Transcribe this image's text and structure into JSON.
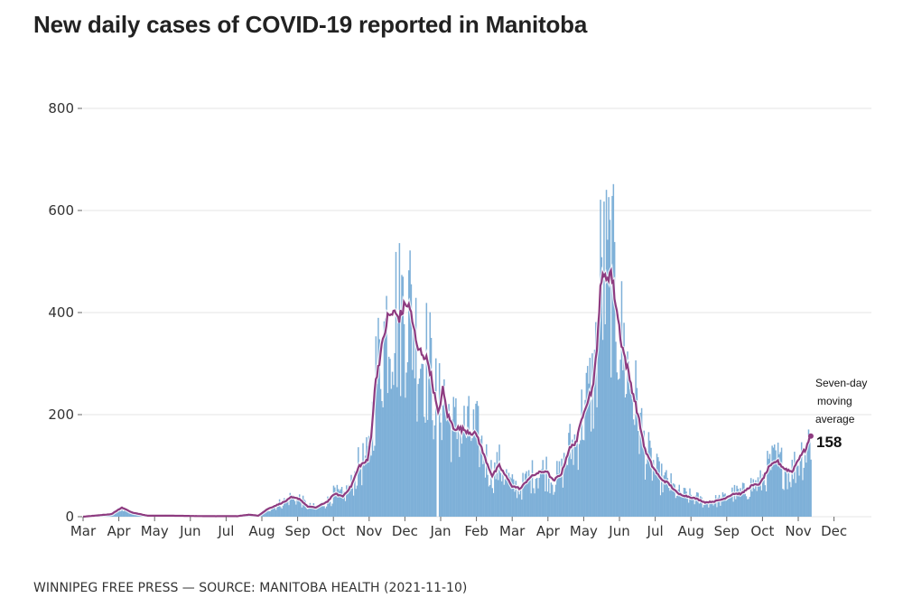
{
  "title": "New daily cases of COVID-19 reported in Manitoba",
  "footer": "WINNIPEG FREE PRESS — SOURCE: MANITOBA HEALTH (2021-11-10)",
  "chart_data": {
    "type": "bar",
    "title": "New daily cases of COVID-19 reported in Manitoba",
    "xlabel": "",
    "ylabel": "",
    "ylim": [
      0,
      800
    ],
    "yticks": [
      "0",
      "200",
      "400",
      "600",
      "800"
    ],
    "ytick_values": [
      0,
      200,
      400,
      600,
      800
    ],
    "xticks": [
      "Mar",
      "Apr",
      "May",
      "Jun",
      "Jul",
      "Aug",
      "Sep",
      "Oct",
      "Nov",
      "Dec",
      "Jan",
      "Feb",
      "Mar",
      "Apr",
      "May",
      "Jun",
      "Jul",
      "Aug",
      "Sep",
      "Oct",
      "Nov",
      "Dec"
    ],
    "x_start": "2020-03-01",
    "x_end": "2021-11-10",
    "grid": true,
    "colors": {
      "bars": "#7eb0d8",
      "line": "#8e3b80"
    },
    "annotation": {
      "label_lines": [
        "Seven-day",
        "moving",
        "average"
      ],
      "value": "158"
    },
    "series": [
      {
        "name": "Seven-day moving average (approx., day offset from 2020-03-01)",
        "points": [
          [
            0,
            0
          ],
          [
            24,
            5
          ],
          [
            33,
            18
          ],
          [
            42,
            8
          ],
          [
            55,
            2
          ],
          [
            75,
            2
          ],
          [
            106,
            1
          ],
          [
            131,
            1
          ],
          [
            141,
            4
          ],
          [
            149,
            2
          ],
          [
            157,
            15
          ],
          [
            172,
            30
          ],
          [
            177,
            38
          ],
          [
            184,
            35
          ],
          [
            191,
            20
          ],
          [
            198,
            18
          ],
          [
            208,
            30
          ],
          [
            214,
            45
          ],
          [
            221,
            40
          ],
          [
            228,
            60
          ],
          [
            235,
            100
          ],
          [
            242,
            110
          ],
          [
            245,
            160
          ],
          [
            249,
            270
          ],
          [
            254,
            330
          ],
          [
            259,
            390
          ],
          [
            264,
            400
          ],
          [
            269,
            390
          ],
          [
            275,
            420
          ],
          [
            279,
            400
          ],
          [
            284,
            330
          ],
          [
            289,
            320
          ],
          [
            294,
            300
          ],
          [
            302,
            200
          ],
          [
            306,
            250
          ],
          [
            310,
            200
          ],
          [
            315,
            175
          ],
          [
            325,
            170
          ],
          [
            335,
            160
          ],
          [
            341,
            120
          ],
          [
            348,
            80
          ],
          [
            354,
            100
          ],
          [
            358,
            85
          ],
          [
            365,
            60
          ],
          [
            372,
            55
          ],
          [
            379,
            75
          ],
          [
            386,
            85
          ],
          [
            394,
            90
          ],
          [
            400,
            70
          ],
          [
            407,
            85
          ],
          [
            413,
            130
          ],
          [
            420,
            150
          ],
          [
            426,
            210
          ],
          [
            433,
            250
          ],
          [
            437,
            320
          ],
          [
            440,
            460
          ],
          [
            445,
            470
          ],
          [
            449,
            480
          ],
          [
            453,
            420
          ],
          [
            458,
            340
          ],
          [
            464,
            280
          ],
          [
            471,
            210
          ],
          [
            478,
            130
          ],
          [
            484,
            100
          ],
          [
            491,
            75
          ],
          [
            498,
            65
          ],
          [
            506,
            45
          ],
          [
            514,
            40
          ],
          [
            522,
            35
          ],
          [
            529,
            28
          ],
          [
            537,
            30
          ],
          [
            545,
            35
          ],
          [
            553,
            45
          ],
          [
            560,
            45
          ],
          [
            568,
            60
          ],
          [
            576,
            65
          ],
          [
            583,
            95
          ],
          [
            590,
            110
          ],
          [
            596,
            95
          ],
          [
            603,
            88
          ],
          [
            610,
            120
          ],
          [
            614,
            130
          ],
          [
            619,
            158
          ]
        ]
      },
      {
        "name": "New daily cases",
        "derived_from": "moving average with daily variation (approx.)"
      }
    ]
  }
}
